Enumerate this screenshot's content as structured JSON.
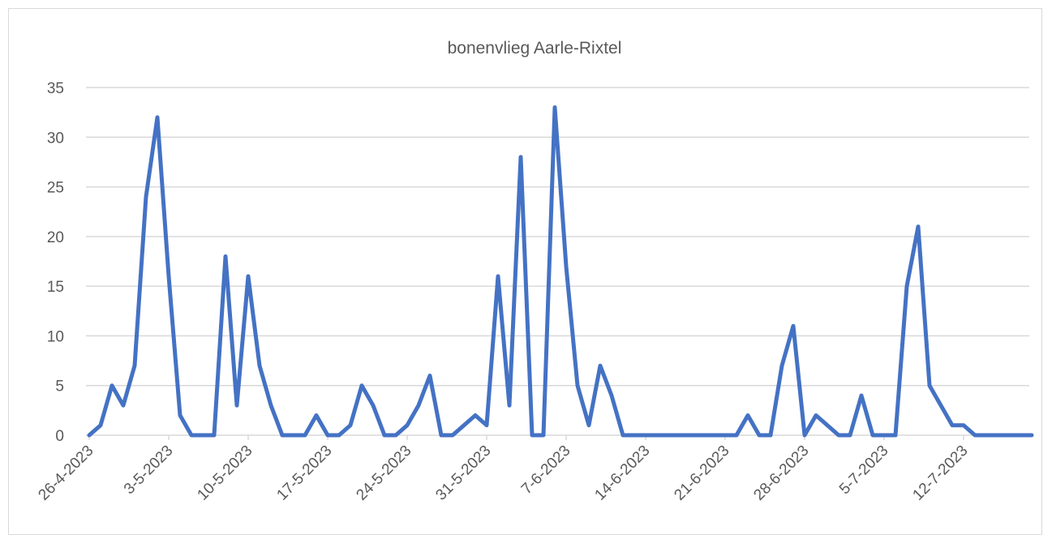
{
  "chart_data": {
    "type": "line",
    "title": "bonenvlieg Aarle-Rixtel",
    "xlabel": "",
    "ylabel": "",
    "ylim": [
      0,
      35
    ],
    "yticks": [
      "0",
      "5",
      "10",
      "15",
      "20",
      "25",
      "30",
      "35"
    ],
    "xtick_labels": [
      "26-4-2023",
      "3-5-2023",
      "10-5-2023",
      "17-5-2023",
      "24-5-2023",
      "31-5-2023",
      "7-6-2023",
      "14-6-2023",
      "21-6-2023",
      "28-6-2023",
      "5-7-2023",
      "12-7-2023"
    ],
    "grid": true,
    "legend": "none",
    "line_color": "#4472c4",
    "series": [
      {
        "x": [
          "26-4-2023",
          "27-4-2023",
          "28-4-2023",
          "29-4-2023",
          "30-4-2023",
          "1-5-2023",
          "2-5-2023",
          "3-5-2023",
          "4-5-2023",
          "5-5-2023",
          "6-5-2023",
          "7-5-2023",
          "8-5-2023",
          "9-5-2023",
          "10-5-2023",
          "11-5-2023",
          "12-5-2023",
          "13-5-2023",
          "14-5-2023",
          "15-5-2023",
          "16-5-2023",
          "17-5-2023",
          "18-5-2023",
          "19-5-2023",
          "20-5-2023",
          "21-5-2023",
          "22-5-2023",
          "23-5-2023",
          "24-5-2023",
          "25-5-2023",
          "26-5-2023",
          "27-5-2023",
          "28-5-2023",
          "29-5-2023",
          "30-5-2023",
          "31-5-2023",
          "1-6-2023",
          "2-6-2023",
          "3-6-2023",
          "4-6-2023",
          "5-6-2023",
          "6-6-2023",
          "7-6-2023",
          "8-6-2023",
          "9-6-2023",
          "10-6-2023",
          "11-6-2023",
          "12-6-2023",
          "13-6-2023",
          "14-6-2023",
          "15-6-2023",
          "16-6-2023",
          "17-6-2023",
          "18-6-2023",
          "19-6-2023",
          "20-6-2023",
          "21-6-2023",
          "22-6-2023",
          "23-6-2023",
          "24-6-2023",
          "25-6-2023",
          "26-6-2023",
          "27-6-2023",
          "28-6-2023",
          "29-6-2023",
          "30-6-2023",
          "1-7-2023",
          "2-7-2023",
          "3-7-2023",
          "4-7-2023",
          "5-7-2023",
          "6-7-2023",
          "7-7-2023",
          "8-7-2023",
          "9-7-2023",
          "10-7-2023",
          "11-7-2023",
          "12-7-2023",
          "13-7-2023",
          "14-7-2023",
          "15-7-2023",
          "16-7-2023",
          "17-7-2023",
          "18-7-2023"
        ],
        "values": [
          0,
          1,
          5,
          3,
          7,
          24,
          32,
          16,
          2,
          0,
          0,
          0,
          18,
          3,
          16,
          7,
          3,
          0,
          0,
          0,
          2,
          0,
          0,
          1,
          5,
          3,
          0,
          0,
          1,
          3,
          6,
          0,
          0,
          1,
          2,
          1,
          16,
          3,
          28,
          0,
          0,
          33,
          17,
          5,
          1,
          7,
          4,
          0,
          0,
          0,
          0,
          0,
          0,
          0,
          0,
          0,
          0,
          0,
          2,
          0,
          0,
          7,
          11,
          0,
          2,
          1,
          0,
          0,
          4,
          0,
          0,
          0,
          15,
          21,
          5,
          3,
          1,
          1,
          0,
          0,
          0,
          0,
          0,
          0
        ]
      }
    ]
  }
}
